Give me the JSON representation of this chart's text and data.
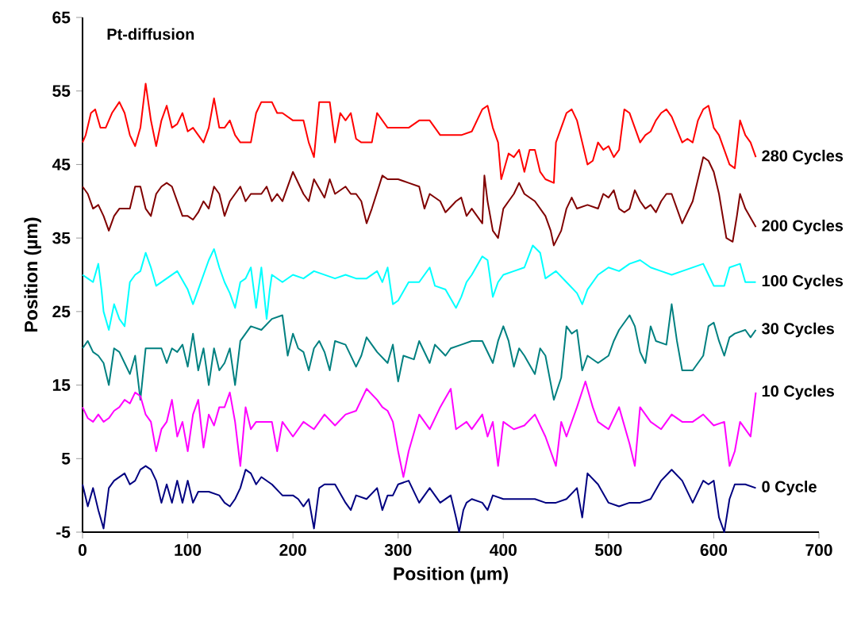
{
  "chart_data": {
    "type": "line",
    "title": "Pt-diffusion",
    "xlabel": "Position (µm)",
    "ylabel": "Position (µm)",
    "xlim": [
      0,
      700
    ],
    "xticks": [
      0,
      100,
      200,
      300,
      400,
      500,
      600,
      700
    ],
    "ylim": [
      -5,
      65
    ],
    "yticks": [
      -5,
      5,
      15,
      25,
      35,
      45,
      55,
      65
    ],
    "grid": false,
    "legend": false,
    "marker": "none",
    "line_style": "solid",
    "series": [
      {
        "name": "280 Cycles",
        "color": "#ff0000",
        "x": [
          0,
          3,
          8,
          12,
          17,
          22,
          28,
          35,
          40,
          45,
          50,
          55,
          60,
          65,
          70,
          75,
          80,
          85,
          90,
          95,
          100,
          105,
          110,
          115,
          120,
          125,
          130,
          135,
          140,
          145,
          150,
          160,
          165,
          170,
          180,
          185,
          190,
          200,
          210,
          215,
          220,
          225,
          235,
          240,
          245,
          250,
          255,
          260,
          265,
          275,
          280,
          290,
          300,
          310,
          320,
          330,
          340,
          350,
          360,
          370,
          380,
          385,
          390,
          395,
          398,
          405,
          410,
          415,
          420,
          425,
          430,
          435,
          440,
          448,
          450,
          455,
          460,
          465,
          470,
          475,
          480,
          485,
          490,
          495,
          500,
          505,
          510,
          515,
          520,
          525,
          530,
          535,
          540,
          545,
          550,
          555,
          560,
          570,
          575,
          580,
          585,
          590,
          595,
          600,
          605,
          610,
          615,
          620,
          625,
          630,
          635,
          640
        ],
        "values": [
          48,
          49,
          52,
          52.5,
          50,
          50,
          52,
          53.5,
          52,
          49,
          47.5,
          50,
          56,
          51,
          47.5,
          51,
          53,
          50,
          50.5,
          52,
          49.5,
          50,
          49,
          48,
          50,
          54,
          50,
          50,
          51,
          49,
          48,
          48,
          52,
          53.5,
          53.5,
          52,
          52,
          51,
          51,
          48,
          46,
          53.5,
          53.5,
          48,
          52,
          51,
          52,
          48.5,
          48,
          48,
          52,
          50,
          50,
          50,
          51,
          51,
          49,
          49,
          49,
          49.5,
          52.5,
          53,
          50,
          48,
          43,
          46.5,
          46,
          47,
          44,
          47,
          47,
          44,
          43,
          42.5,
          48,
          50,
          52,
          52.5,
          51,
          48,
          45,
          45.5,
          48,
          47,
          47.5,
          46,
          47,
          52.5,
          52,
          50,
          48,
          49,
          49.5,
          51,
          52,
          52.5,
          51.5,
          48,
          48.5,
          48,
          51,
          52.5,
          53,
          50,
          49,
          47,
          45,
          44.5,
          51,
          49,
          48,
          46
        ]
      },
      {
        "name": "200 Cycles",
        "color": "#800000",
        "x": [
          0,
          5,
          10,
          15,
          20,
          25,
          30,
          35,
          40,
          45,
          50,
          55,
          60,
          65,
          70,
          75,
          80,
          85,
          90,
          95,
          100,
          105,
          110,
          115,
          120,
          125,
          130,
          135,
          140,
          150,
          155,
          160,
          170,
          175,
          180,
          185,
          190,
          200,
          210,
          215,
          220,
          230,
          235,
          240,
          250,
          255,
          260,
          265,
          270,
          275,
          285,
          290,
          300,
          310,
          320,
          325,
          330,
          340,
          345,
          355,
          360,
          365,
          370,
          380,
          382,
          385,
          390,
          395,
          400,
          405,
          410,
          415,
          420,
          430,
          440,
          445,
          448,
          455,
          460,
          465,
          470,
          480,
          490,
          495,
          500,
          505,
          510,
          515,
          520,
          525,
          530,
          535,
          540,
          545,
          550,
          555,
          560,
          570,
          575,
          580,
          585,
          590,
          595,
          600,
          605,
          612,
          618,
          622,
          625,
          630,
          640
        ],
        "values": [
          42,
          41,
          39,
          39.5,
          38,
          36,
          38,
          39,
          39,
          39,
          42,
          42,
          39,
          38,
          41,
          42,
          42.5,
          42,
          40,
          38,
          38,
          37.5,
          38.5,
          40,
          39,
          42,
          41,
          38,
          40,
          42,
          40,
          41,
          41,
          42,
          40,
          41,
          40,
          44,
          41,
          40,
          43,
          40.5,
          43,
          41,
          42,
          41,
          41,
          40,
          37,
          39,
          43.5,
          43,
          43,
          42.5,
          42,
          39,
          41,
          40,
          38.5,
          40,
          40.5,
          38,
          39,
          37,
          43.5,
          40,
          36,
          35,
          39,
          40,
          41,
          42.5,
          41,
          40,
          38,
          36,
          34,
          36,
          39,
          40.5,
          39,
          39.5,
          39,
          41,
          40.5,
          41.5,
          39,
          38.5,
          39,
          41.5,
          40,
          39,
          39.5,
          38.5,
          40,
          41,
          41,
          37,
          38.5,
          40,
          43,
          46,
          45.5,
          44,
          41,
          35,
          34.5,
          38,
          41,
          39,
          36.5
        ]
      },
      {
        "name": "100 Cycles",
        "color": "#00ffff",
        "x": [
          0,
          5,
          10,
          15,
          18,
          20,
          25,
          30,
          35,
          40,
          45,
          50,
          55,
          60,
          65,
          70,
          80,
          90,
          100,
          105,
          110,
          115,
          120,
          125,
          130,
          135,
          140,
          145,
          150,
          155,
          160,
          165,
          170,
          175,
          178,
          180,
          190,
          200,
          210,
          220,
          230,
          240,
          250,
          260,
          270,
          280,
          285,
          290,
          295,
          300,
          310,
          320,
          330,
          335,
          345,
          355,
          360,
          365,
          370,
          380,
          385,
          390,
          395,
          400,
          410,
          420,
          428,
          435,
          440,
          450,
          460,
          470,
          475,
          480,
          490,
          500,
          510,
          520,
          530,
          540,
          550,
          560,
          570,
          580,
          590,
          595,
          600,
          610,
          615,
          625,
          630,
          640
        ],
        "values": [
          30,
          29.5,
          29,
          31.5,
          28,
          25,
          22.5,
          26,
          24,
          23,
          29,
          30,
          30.5,
          33,
          31,
          28.5,
          29.5,
          30.5,
          28,
          26,
          28,
          30,
          32,
          33.5,
          31,
          29,
          27.5,
          25.5,
          29,
          29.5,
          31,
          25.5,
          31,
          24,
          28,
          30,
          29,
          30,
          29.5,
          30.5,
          30,
          29.5,
          30,
          29.5,
          29.5,
          30.5,
          29,
          31,
          26,
          26.5,
          29,
          29,
          31,
          28.5,
          28,
          25.5,
          27,
          29,
          30,
          32.5,
          32,
          27,
          29,
          30,
          30.5,
          31,
          34,
          33,
          29.5,
          30.5,
          29,
          27.5,
          26,
          28,
          30,
          31,
          30.5,
          31.5,
          32,
          31,
          30.5,
          30,
          30.5,
          31,
          31.5,
          30,
          28.5,
          28.5,
          31,
          31.5,
          29,
          29
        ]
      },
      {
        "name": "30 Cycles",
        "color": "#008080",
        "x": [
          0,
          5,
          10,
          15,
          20,
          25,
          30,
          35,
          40,
          45,
          50,
          55,
          60,
          70,
          75,
          80,
          85,
          90,
          95,
          100,
          105,
          110,
          115,
          120,
          125,
          130,
          135,
          140,
          145,
          150,
          160,
          170,
          180,
          190,
          195,
          200,
          205,
          210,
          215,
          220,
          225,
          230,
          235,
          240,
          250,
          260,
          265,
          270,
          280,
          290,
          295,
          300,
          305,
          315,
          320,
          330,
          335,
          345,
          350,
          360,
          370,
          380,
          390,
          395,
          400,
          405,
          410,
          415,
          420,
          430,
          435,
          440,
          448,
          455,
          460,
          465,
          470,
          475,
          480,
          490,
          500,
          505,
          510,
          520,
          525,
          530,
          535,
          540,
          545,
          555,
          560,
          565,
          570,
          580,
          590,
          595,
          600,
          605,
          610,
          615,
          620,
          630,
          635,
          640
        ],
        "values": [
          20,
          21,
          19.5,
          19,
          18,
          15,
          20,
          19.5,
          18,
          16.5,
          19,
          13,
          20,
          20,
          20,
          18,
          20,
          19.5,
          20.5,
          17.5,
          22,
          17,
          20,
          15,
          20,
          17,
          18,
          20,
          15,
          21,
          23,
          22.5,
          24,
          24.5,
          19,
          22,
          20,
          19.5,
          17,
          20,
          21,
          19.5,
          17,
          21,
          20.5,
          17.5,
          19,
          21.5,
          19.5,
          18,
          20.5,
          15.5,
          19,
          18.5,
          21,
          18,
          20.5,
          19,
          20,
          20.5,
          21,
          21,
          18,
          21,
          23,
          21,
          17.5,
          20,
          19,
          16.5,
          20,
          19,
          13,
          16,
          23,
          22,
          22.5,
          17,
          19,
          18,
          19,
          21,
          22.5,
          24.5,
          23,
          19.5,
          18,
          23,
          21,
          20.5,
          26,
          21,
          17,
          17,
          19,
          23,
          23.5,
          21,
          19,
          21.5,
          22,
          22.5,
          21.5,
          22.5
        ]
      },
      {
        "name": "10 Cycles",
        "color": "#ff00ff",
        "x": [
          0,
          5,
          10,
          15,
          20,
          25,
          30,
          35,
          40,
          45,
          50,
          55,
          60,
          65,
          70,
          75,
          80,
          85,
          90,
          95,
          100,
          105,
          110,
          115,
          120,
          125,
          130,
          135,
          140,
          145,
          150,
          155,
          160,
          165,
          170,
          175,
          180,
          185,
          190,
          200,
          210,
          220,
          230,
          240,
          250,
          260,
          265,
          270,
          280,
          285,
          290,
          295,
          300,
          305,
          310,
          320,
          330,
          340,
          350,
          355,
          365,
          370,
          380,
          385,
          390,
          395,
          400,
          410,
          420,
          430,
          440,
          450,
          455,
          460,
          470,
          478,
          485,
          490,
          500,
          510,
          520,
          525,
          530,
          540,
          550,
          560,
          570,
          580,
          590,
          600,
          610,
          615,
          620,
          625,
          630,
          635,
          640
        ],
        "values": [
          12,
          10.5,
          10,
          11,
          10,
          10.5,
          11.5,
          12,
          13,
          12.5,
          14,
          13.5,
          11,
          10,
          6,
          9,
          10,
          13,
          8,
          10,
          6,
          11,
          13,
          6.5,
          11,
          9.5,
          12,
          12,
          14,
          10,
          4,
          12,
          9,
          10,
          10,
          10,
          10,
          6,
          10,
          8,
          10,
          9,
          11,
          9.5,
          11,
          11.5,
          13,
          14.5,
          13,
          12,
          11.5,
          10,
          6,
          2.5,
          6,
          11,
          9,
          12,
          14.5,
          9,
          10,
          9,
          11,
          8,
          10,
          4,
          10,
          9,
          9.5,
          11,
          8,
          4,
          10,
          8,
          12,
          15.5,
          12,
          10,
          9,
          12,
          7,
          4,
          12,
          10,
          9,
          11,
          10,
          10,
          11,
          9.5,
          10,
          4,
          6,
          10,
          9,
          8,
          14
        ]
      },
      {
        "name": "0 Cycle",
        "color": "#000080",
        "x": [
          0,
          5,
          10,
          15,
          20,
          25,
          30,
          40,
          45,
          50,
          55,
          60,
          65,
          70,
          75,
          80,
          85,
          90,
          95,
          100,
          105,
          110,
          120,
          130,
          135,
          140,
          145,
          150,
          155,
          160,
          165,
          170,
          180,
          190,
          200,
          205,
          210,
          215,
          220,
          225,
          230,
          240,
          250,
          255,
          260,
          270,
          280,
          285,
          290,
          295,
          300,
          310,
          320,
          330,
          340,
          350,
          355,
          358,
          362,
          365,
          370,
          380,
          385,
          390,
          400,
          410,
          420,
          430,
          440,
          450,
          460,
          470,
          475,
          480,
          490,
          500,
          510,
          520,
          530,
          540,
          550,
          560,
          570,
          580,
          590,
          595,
          600,
          605,
          610,
          615,
          620,
          630,
          640
        ],
        "values": [
          1.5,
          -1.5,
          1,
          -2,
          -4.5,
          1,
          2,
          3,
          1.5,
          2,
          3.5,
          4,
          3.5,
          2,
          -1,
          1.5,
          -1,
          2,
          -1,
          2,
          -1,
          0.5,
          0.5,
          0,
          -1,
          -1.5,
          -0.5,
          1,
          3.5,
          3,
          1.5,
          2.5,
          1.5,
          0,
          0,
          -0.5,
          -1.5,
          -0.5,
          -4.5,
          1,
          1.5,
          1.5,
          -1,
          -2,
          0,
          -0.5,
          1,
          -2,
          0,
          0,
          1.5,
          2,
          -1,
          1,
          -1,
          0,
          -3,
          -5,
          -2,
          -1,
          -0.5,
          -1,
          -2,
          0,
          -0.5,
          -0.5,
          -0.5,
          -0.5,
          -1,
          -1,
          -0.5,
          1,
          -3,
          3,
          1.5,
          -1,
          -1.5,
          -1,
          -1,
          -0.5,
          2,
          3.5,
          2,
          -1,
          2,
          1.5,
          2,
          -3,
          -5,
          -0.5,
          1.5,
          1.5,
          1
        ]
      }
    ]
  }
}
